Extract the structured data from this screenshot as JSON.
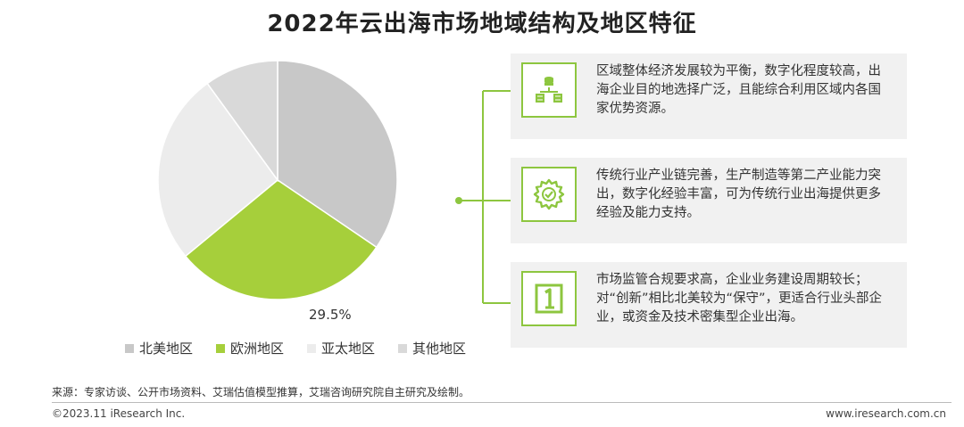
{
  "title": "2022年云出海市场地域结构及地区特征",
  "chart_data": {
    "type": "pie",
    "slices": [
      {
        "name": "北美地区",
        "value": 34.5,
        "color": "#c8c8c8"
      },
      {
        "name": "欧洲地区",
        "value": 29.5,
        "color": "#a6cf3b"
      },
      {
        "name": "亚太地区",
        "value": 26.0,
        "color": "#ececec"
      },
      {
        "name": "其他地区",
        "value": 10.0,
        "color": "#d9d9d9"
      }
    ],
    "data_labels": [
      "29.5%"
    ]
  },
  "cards": [
    {
      "icon": "money-stack-icon",
      "text": "区域整体经济发展较为平衡，数字化程度较高，出海企业目的地选择广泛，且能综合利用区域内各国家优势资源。"
    },
    {
      "icon": "gear-check-icon",
      "text": "传统行业产业链完善，生产制造等第二产业能力突出，数字化经验丰富，可为传统行业出海提供更多经验及能力支持。"
    },
    {
      "icon": "number-one-icon",
      "text": "市场监管合规要求高，企业业务建设周期较长；对“创新”相比北美较为“保守”，更适合行业头部企业，或资金及技术密集型企业出海。"
    }
  ],
  "accent_color": "#8dc63f",
  "source": "来源：专家访谈、公开市场资料、艾瑞估值模型推算，艾瑞咨询研究院自主研究及绘制。",
  "footer": {
    "left": "©2023.11 iResearch Inc.",
    "right": "www.iresearch.com.cn"
  }
}
